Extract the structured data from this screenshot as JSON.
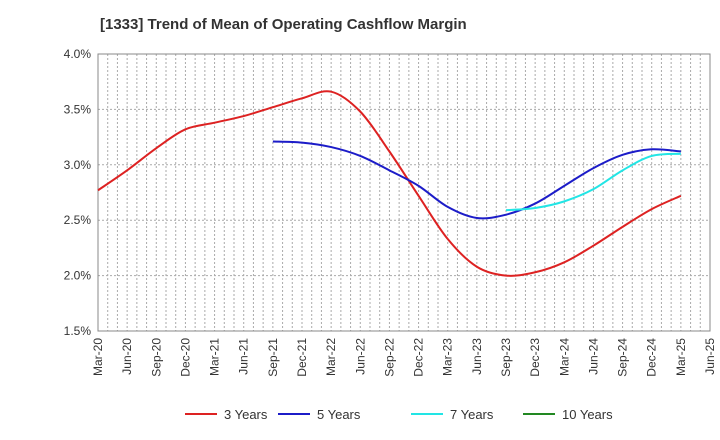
{
  "chart_data": {
    "type": "line",
    "title": "[1333]  Trend of Mean of Operating Cashflow Margin",
    "xlabel": "",
    "ylabel": "",
    "ylim": [
      1.5,
      4.0
    ],
    "y_ticks": [
      "1.5%",
      "2.0%",
      "2.5%",
      "3.0%",
      "3.5%",
      "4.0%"
    ],
    "x_ticks": [
      "Mar-20",
      "Jun-20",
      "Sep-20",
      "Dec-20",
      "Mar-21",
      "Jun-21",
      "Sep-21",
      "Dec-21",
      "Mar-22",
      "Jun-22",
      "Sep-22",
      "Dec-22",
      "Mar-23",
      "Jun-23",
      "Sep-23",
      "Dec-23",
      "Mar-24",
      "Jun-24",
      "Sep-24",
      "Dec-24",
      "Mar-25",
      "Jun-25"
    ],
    "grid": true,
    "legend_position": "bottom",
    "series": [
      {
        "name": "3 Years",
        "color": "#dd2222",
        "start_index": 0,
        "values": [
          2.77,
          2.95,
          3.15,
          3.32,
          3.38,
          3.44,
          3.52,
          3.6,
          3.66,
          3.48,
          3.12,
          2.72,
          2.33,
          2.08,
          2.0,
          2.03,
          2.12,
          2.27,
          2.44,
          2.6,
          2.72
        ]
      },
      {
        "name": "5 Years",
        "color": "#1c1cc8",
        "start_index": 6,
        "values": [
          3.21,
          3.2,
          3.16,
          3.08,
          2.95,
          2.81,
          2.62,
          2.52,
          2.55,
          2.65,
          2.81,
          2.97,
          3.09,
          3.14,
          3.12
        ]
      },
      {
        "name": "7 Years",
        "color": "#22e5e5",
        "start_index": 14,
        "values": [
          2.59,
          2.61,
          2.67,
          2.78,
          2.95,
          3.08,
          3.1
        ]
      },
      {
        "name": "10 Years",
        "color": "#228822",
        "start_index": 0,
        "values": []
      }
    ]
  }
}
